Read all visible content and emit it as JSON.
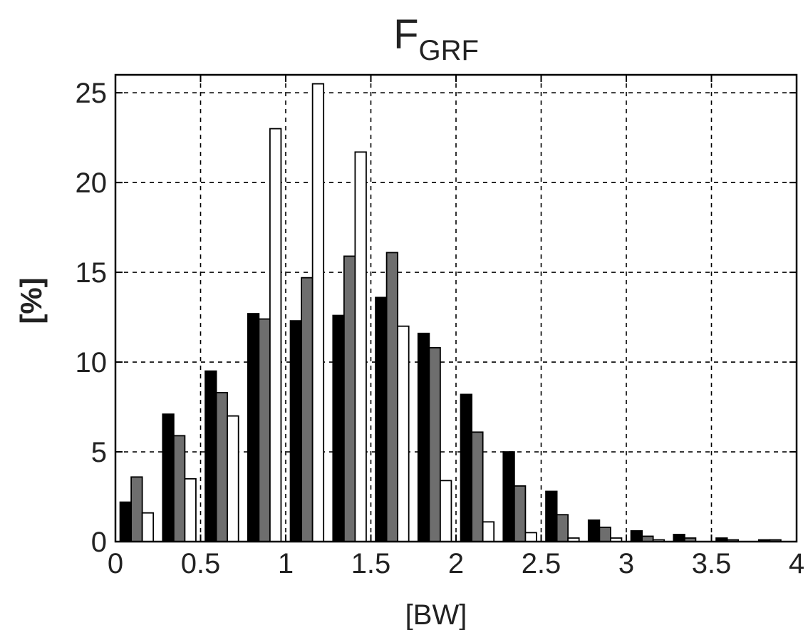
{
  "chart_data": {
    "type": "bar",
    "title_main": "F",
    "title_sub": "GRF",
    "xlabel": "[BW]",
    "ylabel": "[%]",
    "xlim": [
      0,
      4
    ],
    "ylim": [
      0,
      26
    ],
    "xticks": [
      "0",
      "0.5",
      "1",
      "1.5",
      "2",
      "2.5",
      "3",
      "3.5",
      "4"
    ],
    "yticks": [
      "0",
      "5",
      "10",
      "15",
      "20",
      "25"
    ],
    "grid": true,
    "bin_centers": [
      0.125,
      0.375,
      0.625,
      0.875,
      1.125,
      1.375,
      1.625,
      1.875,
      2.125,
      2.375,
      2.625,
      2.875,
      3.125,
      3.375,
      3.625,
      3.875
    ],
    "series": [
      {
        "color": "#000000",
        "values": [
          2.2,
          7.1,
          9.5,
          12.7,
          12.3,
          12.6,
          13.6,
          11.6,
          8.2,
          5.0,
          2.8,
          1.2,
          0.6,
          0.4,
          0.2,
          0.1
        ]
      },
      {
        "color": "#6e6e6e",
        "values": [
          3.6,
          5.9,
          8.3,
          12.4,
          14.7,
          15.9,
          16.1,
          10.8,
          6.1,
          3.1,
          1.5,
          0.8,
          0.3,
          0.2,
          0.1,
          0.1
        ]
      },
      {
        "color": "#ffffff",
        "values": [
          1.6,
          3.5,
          7.0,
          23.0,
          25.5,
          21.7,
          12.0,
          3.4,
          1.1,
          0.5,
          0.2,
          0.2,
          0.1,
          0.0,
          0.0,
          0.0
        ]
      }
    ]
  }
}
